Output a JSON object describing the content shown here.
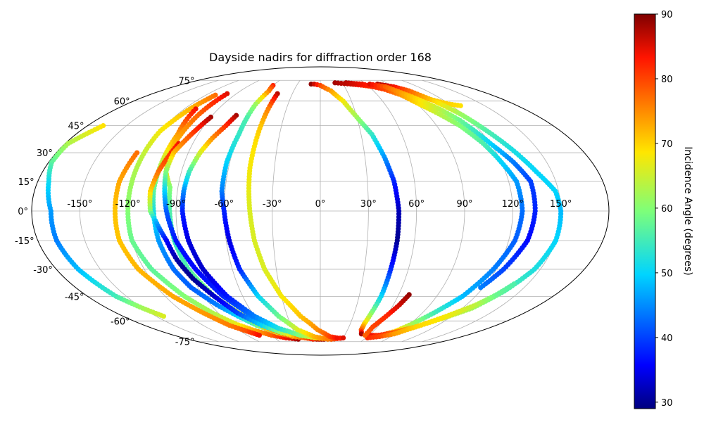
{
  "chart_data": {
    "type": "scatter",
    "projection": "mollweide",
    "title": "Dayside nadirs for diffraction order 168",
    "x_ticks": [
      "-150°",
      "-120°",
      "-90°",
      "-60°",
      "-30°",
      "0°",
      "30°",
      "60°",
      "90°",
      "120°",
      "150°"
    ],
    "y_ticks": [
      "-75°",
      "-60°",
      "-45°",
      "-30°",
      "-15°",
      "0°",
      "15°",
      "30°",
      "45°",
      "60°",
      "75°"
    ],
    "grid": true,
    "colorbar": {
      "label": "Incidence Angle (degrees)",
      "colormap": "jet",
      "range": [
        29,
        90
      ],
      "ticks": [
        "30",
        "40",
        "50",
        "60",
        "70",
        "80",
        "90"
      ]
    },
    "series": [
      {
        "points": [
          [
            -168,
            45,
            69
          ],
          [
            -178,
            35,
            63
          ],
          [
            -178,
            25,
            57
          ],
          [
            -173,
            15,
            51
          ],
          [
            -168,
            0,
            46
          ],
          [
            -168,
            -15,
            44
          ],
          [
            -165,
            -30,
            48
          ],
          [
            -158,
            -45,
            55
          ],
          [
            -150,
            -52,
            62
          ],
          [
            -143,
            -57,
            66
          ]
        ]
      },
      {
        "points": [
          [
            -110,
            64,
            77
          ],
          [
            -115,
            55,
            72
          ],
          [
            -120,
            42,
            68
          ],
          [
            -120,
            28,
            64
          ],
          [
            -120,
            15,
            62
          ],
          [
            -120,
            0,
            60
          ],
          [
            -120,
            -15,
            58
          ],
          [
            -115,
            -30,
            57
          ],
          [
            -105,
            -45,
            60
          ],
          [
            -95,
            -55,
            63
          ],
          [
            -85,
            -62,
            67
          ],
          [
            -75,
            -66,
            72
          ],
          [
            -60,
            -70,
            78
          ],
          [
            -45,
            -72,
            84
          ],
          [
            -30,
            -73,
            88
          ]
        ]
      },
      {
        "points": [
          [
            -110,
            55,
            84
          ],
          [
            -105,
            40,
            74
          ],
          [
            -105,
            25,
            64
          ],
          [
            -105,
            10,
            57
          ],
          [
            -104,
            0,
            52
          ],
          [
            -103,
            -15,
            46
          ],
          [
            -100,
            -30,
            43
          ],
          [
            -95,
            -40,
            42
          ],
          [
            -85,
            -50,
            44
          ],
          [
            -75,
            -57,
            50
          ],
          [
            -65,
            -63,
            58
          ],
          [
            -50,
            -68,
            66
          ],
          [
            -35,
            -71,
            74
          ],
          [
            -20,
            -72,
            80
          ],
          [
            -8,
            -72,
            86
          ]
        ]
      },
      {
        "points": [
          [
            -125,
            30,
            77
          ],
          [
            -128,
            15,
            73
          ],
          [
            -128,
            0,
            71
          ],
          [
            -128,
            -15,
            71
          ],
          [
            -124,
            -30,
            72
          ],
          [
            -114,
            -45,
            73
          ],
          [
            -103,
            -55,
            74
          ],
          [
            -93,
            -63,
            76
          ],
          [
            -83,
            -67,
            79
          ],
          [
            -75,
            -70,
            84
          ]
        ]
      },
      {
        "points": [
          [
            -100,
            65,
            85
          ],
          [
            -102,
            52,
            78
          ],
          [
            -103,
            35,
            72
          ],
          [
            -100,
            20,
            68
          ],
          [
            -95,
            12,
            60
          ],
          [
            -94,
            0,
            56
          ],
          [
            -93,
            -15,
            54
          ],
          [
            -90,
            -30,
            56
          ],
          [
            -82,
            -45,
            60
          ],
          [
            -72,
            -55,
            65
          ],
          [
            -58,
            -65,
            72
          ],
          [
            -40,
            -70,
            78
          ],
          [
            -20,
            -72,
            83
          ],
          [
            -5,
            -73,
            86
          ],
          [
            5,
            -73,
            88
          ]
        ]
      },
      {
        "points": [
          [
            -100,
            35,
            84
          ],
          [
            -105,
            20,
            77
          ],
          [
            -107,
            10,
            70
          ],
          [
            -106,
            0,
            60
          ],
          [
            -103,
            -5,
            48
          ],
          [
            -98,
            -15,
            36
          ],
          [
            -95,
            -25,
            31
          ],
          [
            -90,
            -35,
            30
          ],
          [
            -82,
            -45,
            33
          ],
          [
            -73,
            -55,
            40
          ],
          [
            -60,
            -63,
            50
          ],
          [
            -45,
            -68,
            62
          ],
          [
            -30,
            -71,
            74
          ],
          [
            -10,
            -73,
            82
          ]
        ]
      },
      {
        "points": [
          [
            -90,
            50,
            88
          ],
          [
            -95,
            40,
            80
          ],
          [
            -100,
            30,
            72
          ],
          [
            -100,
            20,
            60
          ],
          [
            -98,
            10,
            50
          ],
          [
            -96,
            0,
            42
          ],
          [
            -92,
            -15,
            37
          ],
          [
            -85,
            -30,
            36
          ],
          [
            -75,
            -45,
            38
          ],
          [
            -62,
            -57,
            44
          ],
          [
            -45,
            -65,
            52
          ],
          [
            -25,
            -70,
            62
          ],
          [
            -5,
            -72,
            70
          ],
          [
            15,
            -73,
            80
          ],
          [
            30,
            -72,
            86
          ]
        ]
      },
      {
        "points": [
          [
            -70,
            51,
            88
          ],
          [
            -73,
            45,
            82
          ],
          [
            -78,
            38,
            75
          ],
          [
            -82,
            30,
            66
          ],
          [
            -85,
            20,
            55
          ],
          [
            -86,
            10,
            45
          ],
          [
            -86,
            0,
            38
          ],
          [
            -84,
            -15,
            34
          ],
          [
            -80,
            -30,
            33
          ],
          [
            -72,
            -45,
            37
          ],
          [
            -60,
            -57,
            44
          ],
          [
            -45,
            -65,
            52
          ],
          [
            -25,
            -70,
            60
          ],
          [
            -5,
            -72,
            68
          ],
          [
            15,
            -73,
            78
          ],
          [
            30,
            -72,
            85
          ]
        ]
      },
      {
        "points": [
          [
            -60,
            71,
            82
          ],
          [
            -58,
            67,
            76
          ],
          [
            -60,
            58,
            62
          ],
          [
            -60,
            50,
            56
          ],
          [
            -60,
            40,
            54
          ],
          [
            -62,
            25,
            50
          ],
          [
            -62,
            10,
            44
          ],
          [
            -60,
            0,
            38
          ],
          [
            -58,
            -15,
            34
          ],
          [
            -55,
            -30,
            38
          ],
          [
            -48,
            -45,
            50
          ],
          [
            -38,
            -57,
            58
          ],
          [
            -25,
            -66,
            66
          ],
          [
            -8,
            -71,
            72
          ],
          [
            10,
            -73,
            76
          ]
        ]
      },
      {
        "points": [
          [
            -46,
            65,
            87
          ],
          [
            -46,
            55,
            76
          ],
          [
            -46,
            45,
            71
          ],
          [
            -46,
            35,
            69
          ],
          [
            -46,
            22,
            68
          ],
          [
            -45,
            10,
            67
          ],
          [
            -44,
            0,
            66
          ],
          [
            -42,
            -15,
            66
          ],
          [
            -38,
            -30,
            66
          ],
          [
            -30,
            -45,
            68
          ],
          [
            -18,
            -57,
            71
          ],
          [
            -3,
            -66,
            75
          ],
          [
            12,
            -71,
            80
          ],
          [
            22,
            -72,
            84
          ]
        ]
      },
      {
        "points": [
          [
            -12,
            72,
            89
          ],
          [
            -8,
            72,
            86
          ],
          [
            0,
            71,
            80
          ],
          [
            12,
            67,
            74
          ],
          [
            22,
            60,
            68
          ],
          [
            30,
            50,
            62
          ],
          [
            38,
            40,
            54
          ],
          [
            43,
            28,
            46
          ],
          [
            47,
            15,
            38
          ],
          [
            49,
            0,
            32
          ],
          [
            49,
            -15,
            30
          ],
          [
            48,
            -30,
            38
          ],
          [
            47,
            -45,
            50
          ],
          [
            45,
            -55,
            60
          ],
          [
            44,
            -62,
            70
          ],
          [
            45,
            -66,
            78
          ],
          [
            49,
            -69,
            88
          ]
        ]
      },
      {
        "points": [
          [
            20,
            73,
            88
          ],
          [
            40,
            72,
            86
          ],
          [
            55,
            71,
            82
          ],
          [
            65,
            70,
            78
          ],
          [
            75,
            69,
            76
          ],
          [
            90,
            66,
            72
          ],
          [
            105,
            62,
            71
          ],
          [
            120,
            58,
            70
          ],
          [
            128,
            57,
            69
          ]
        ]
      },
      {
        "points": [
          [
            35,
            73,
            87
          ],
          [
            55,
            72,
            84
          ],
          [
            75,
            68,
            80
          ],
          [
            85,
            64,
            74
          ],
          [
            92,
            58,
            69
          ],
          [
            100,
            52,
            64
          ],
          [
            108,
            45,
            60
          ],
          [
            115,
            35,
            56
          ],
          [
            120,
            25,
            50
          ],
          [
            125,
            15,
            46
          ],
          [
            126,
            0,
            43
          ],
          [
            124,
            -15,
            42
          ],
          [
            118,
            -30,
            44
          ],
          [
            110,
            -45,
            48
          ],
          [
            100,
            -55,
            55
          ],
          [
            92,
            -62,
            62
          ],
          [
            85,
            -67,
            70
          ],
          [
            75,
            -70,
            78
          ],
          [
            62,
            -70,
            84
          ]
        ]
      },
      {
        "points": [
          [
            75,
            72,
            88
          ],
          [
            90,
            70,
            84
          ],
          [
            100,
            67,
            78
          ],
          [
            110,
            60,
            70
          ],
          [
            118,
            52,
            62
          ],
          [
            125,
            42,
            56
          ],
          [
            132,
            32,
            52
          ],
          [
            140,
            20,
            50
          ],
          [
            148,
            10,
            50
          ],
          [
            150,
            0,
            48
          ],
          [
            150,
            -15,
            50
          ],
          [
            146,
            -30,
            52
          ],
          [
            138,
            -42,
            56
          ],
          [
            128,
            -52,
            62
          ],
          [
            115,
            -58,
            66
          ],
          [
            100,
            -64,
            72
          ],
          [
            85,
            -68,
            78
          ],
          [
            72,
            -70,
            82
          ]
        ]
      },
      {
        "points": [
          [
            65,
            72,
            85
          ],
          [
            80,
            70,
            78
          ],
          [
            95,
            62,
            70
          ],
          [
            105,
            55,
            64
          ],
          [
            112,
            48,
            58
          ],
          [
            120,
            35,
            50
          ],
          [
            128,
            25,
            44
          ],
          [
            134,
            15,
            40
          ],
          [
            134,
            0,
            38
          ],
          [
            132,
            -15,
            36
          ],
          [
            125,
            -30,
            40
          ],
          [
            118,
            -40,
            44
          ]
        ]
      },
      {
        "points": [
          [
            62,
            -72,
            82
          ],
          [
            75,
            -71,
            80
          ],
          [
            88,
            -69,
            74
          ],
          [
            100,
            -64,
            70
          ],
          [
            115,
            -57,
            68
          ],
          [
            128,
            -50,
            64
          ],
          [
            135,
            -44,
            58
          ],
          [
            140,
            -38,
            56
          ]
        ]
      },
      {
        "points": [
          [
            68,
            -44,
            89
          ],
          [
            65,
            -50,
            86
          ],
          [
            60,
            -57,
            82
          ],
          [
            55,
            -64,
            80
          ],
          [
            55,
            -70,
            78
          ]
        ]
      }
    ]
  }
}
